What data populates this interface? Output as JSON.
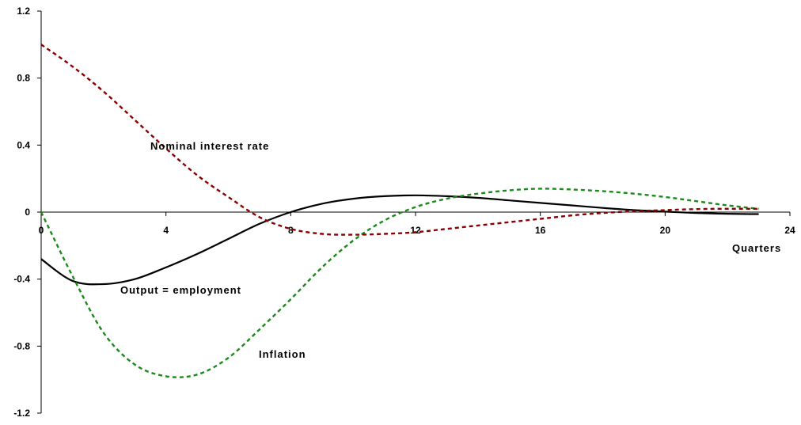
{
  "chart_data": {
    "type": "line",
    "xlabel": "Quarters",
    "ylabel": "",
    "xlim": [
      0,
      24
    ],
    "ylim": [
      -1.2,
      1.2
    ],
    "x_ticks": [
      0,
      4,
      8,
      12,
      16,
      20,
      24
    ],
    "y_ticks": [
      1.2,
      0.8,
      0.4,
      0,
      -0.4,
      -0.8,
      -1.2
    ],
    "x_tick_labels": [
      "0",
      "4",
      "8",
      "12",
      "16",
      "20",
      "24"
    ],
    "y_tick_labels": [
      "1.2",
      "0.8",
      "0.4",
      "0",
      "-0.4",
      "-0.8",
      "-1.2"
    ],
    "grid": false,
    "legend": "none",
    "series": [
      {
        "name": "Output = employment",
        "color": "#000000",
        "style": "solid",
        "x": [
          0,
          1,
          2,
          3,
          4,
          5,
          6,
          7,
          8,
          9,
          10,
          11,
          12,
          13,
          14,
          15,
          16,
          17,
          18,
          19,
          20,
          21,
          22,
          23
        ],
        "values": [
          -0.28,
          -0.41,
          -0.43,
          -0.4,
          -0.33,
          -0.25,
          -0.16,
          -0.07,
          0.0,
          0.05,
          0.08,
          0.095,
          0.1,
          0.095,
          0.085,
          0.07,
          0.055,
          0.04,
          0.025,
          0.012,
          0.003,
          -0.005,
          -0.01,
          -0.012
        ]
      },
      {
        "name": "Inflation",
        "color": "#1a8a1a",
        "style": "short-dash",
        "x": [
          0,
          1,
          2,
          3,
          4,
          5,
          6,
          7,
          8,
          9,
          10,
          11,
          12,
          13,
          14,
          15,
          16,
          17,
          18,
          19,
          20,
          21,
          22,
          23
        ],
        "values": [
          0.0,
          -0.38,
          -0.72,
          -0.91,
          -0.98,
          -0.97,
          -0.87,
          -0.7,
          -0.52,
          -0.33,
          -0.17,
          -0.05,
          0.03,
          0.08,
          0.11,
          0.13,
          0.14,
          0.135,
          0.125,
          0.11,
          0.09,
          0.065,
          0.04,
          0.02
        ]
      },
      {
        "name": "Nominal interest rate",
        "color": "#8b0000",
        "style": "short-dash",
        "x": [
          0,
          1,
          2,
          3,
          4,
          5,
          6,
          7,
          8,
          9,
          10,
          11,
          12,
          13,
          14,
          15,
          16,
          17,
          18,
          19,
          20,
          21,
          22,
          23
        ],
        "values": [
          1.0,
          0.87,
          0.72,
          0.55,
          0.38,
          0.22,
          0.09,
          -0.03,
          -0.1,
          -0.13,
          -0.135,
          -0.13,
          -0.12,
          -0.1,
          -0.08,
          -0.06,
          -0.04,
          -0.02,
          -0.005,
          0.005,
          0.012,
          0.018,
          0.02,
          0.02
        ]
      }
    ]
  }
}
